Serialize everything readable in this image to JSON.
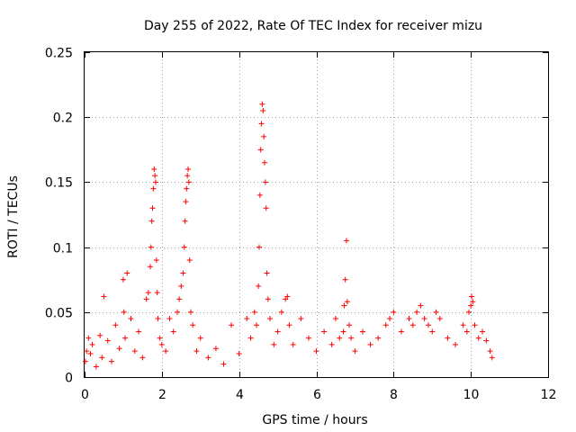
{
  "chart_data": {
    "type": "scatter",
    "title": "Day 255 of 2022, Rate Of TEC Index for receiver mizu",
    "xlabel": "GPS time / hours",
    "ylabel": "ROTI / TECUs",
    "xlim": [
      0,
      12
    ],
    "ylim": [
      0,
      0.25
    ],
    "x_ticks": [
      0,
      2,
      4,
      6,
      8,
      10,
      12
    ],
    "x_tick_labels": [
      "0",
      "2",
      "4",
      "6",
      "8",
      "10",
      "12"
    ],
    "y_ticks": [
      0,
      0.05,
      0.1,
      0.15,
      0.2,
      0.25
    ],
    "y_tick_labels": [
      "0",
      "0.05",
      "0.1",
      "0.15",
      "0.2",
      "0.25"
    ],
    "grid": true,
    "marker": "+",
    "color": "#ff0000",
    "series": [
      {
        "name": "ROTI",
        "x": [
          0.02,
          0.05,
          0.1,
          0.15,
          0.2,
          0.3,
          0.4,
          0.45,
          0.5,
          0.6,
          0.7,
          0.8,
          0.9,
          1.0,
          1.02,
          1.05,
          1.1,
          1.2,
          1.3,
          1.4,
          1.5,
          1.6,
          1.65,
          1.7,
          1.72,
          1.74,
          1.76,
          1.78,
          1.8,
          1.82,
          1.84,
          1.86,
          1.88,
          1.9,
          1.95,
          2.0,
          2.1,
          2.2,
          2.3,
          2.4,
          2.45,
          2.5,
          2.55,
          2.58,
          2.6,
          2.62,
          2.64,
          2.66,
          2.68,
          2.7,
          2.72,
          2.75,
          2.8,
          2.9,
          3.0,
          3.2,
          3.4,
          3.6,
          3.8,
          4.0,
          4.2,
          4.3,
          4.4,
          4.45,
          4.5,
          4.52,
          4.54,
          4.56,
          4.58,
          4.6,
          4.62,
          4.64,
          4.66,
          4.68,
          4.7,
          4.72,
          4.75,
          4.8,
          4.9,
          5.0,
          5.1,
          5.2,
          5.25,
          5.3,
          5.4,
          5.6,
          5.8,
          6.0,
          6.2,
          6.4,
          6.5,
          6.6,
          6.7,
          6.72,
          6.75,
          6.78,
          6.8,
          6.85,
          6.9,
          7.0,
          7.2,
          7.4,
          7.6,
          7.8,
          7.9,
          8.0,
          8.2,
          8.4,
          8.5,
          8.6,
          8.7,
          8.8,
          8.9,
          9.0,
          9.1,
          9.2,
          9.4,
          9.6,
          9.8,
          9.9,
          9.95,
          10.0,
          10.02,
          10.05,
          10.1,
          10.2,
          10.3,
          10.4,
          10.5,
          10.55
        ],
        "y": [
          0.012,
          0.02,
          0.03,
          0.018,
          0.025,
          0.008,
          0.032,
          0.015,
          0.062,
          0.028,
          0.012,
          0.04,
          0.022,
          0.075,
          0.05,
          0.03,
          0.08,
          0.045,
          0.02,
          0.035,
          0.015,
          0.06,
          0.065,
          0.085,
          0.1,
          0.12,
          0.13,
          0.145,
          0.16,
          0.155,
          0.15,
          0.09,
          0.065,
          0.045,
          0.03,
          0.025,
          0.02,
          0.045,
          0.035,
          0.05,
          0.06,
          0.07,
          0.08,
          0.1,
          0.12,
          0.135,
          0.145,
          0.155,
          0.16,
          0.15,
          0.09,
          0.05,
          0.04,
          0.02,
          0.03,
          0.015,
          0.022,
          0.01,
          0.04,
          0.018,
          0.045,
          0.03,
          0.05,
          0.04,
          0.07,
          0.1,
          0.14,
          0.175,
          0.195,
          0.21,
          0.205,
          0.185,
          0.165,
          0.15,
          0.13,
          0.08,
          0.06,
          0.045,
          0.025,
          0.035,
          0.05,
          0.06,
          0.062,
          0.04,
          0.025,
          0.045,
          0.03,
          0.02,
          0.035,
          0.025,
          0.045,
          0.03,
          0.035,
          0.055,
          0.075,
          0.105,
          0.058,
          0.04,
          0.03,
          0.02,
          0.035,
          0.025,
          0.03,
          0.04,
          0.045,
          0.05,
          0.035,
          0.045,
          0.04,
          0.05,
          0.055,
          0.045,
          0.04,
          0.035,
          0.05,
          0.045,
          0.03,
          0.025,
          0.04,
          0.035,
          0.05,
          0.055,
          0.062,
          0.058,
          0.04,
          0.03,
          0.035,
          0.028,
          0.02,
          0.015
        ]
      }
    ]
  }
}
